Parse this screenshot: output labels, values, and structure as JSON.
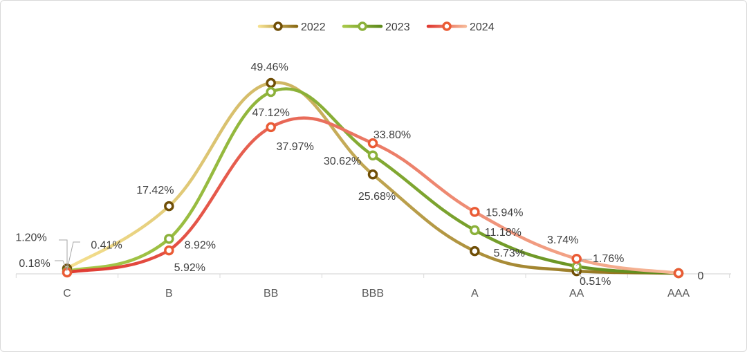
{
  "chart_data": {
    "type": "line",
    "smooth": true,
    "title": "",
    "xlabel": "",
    "ylabel": "",
    "categories": [
      "C",
      "B",
      "BB",
      "BBB",
      "A",
      "AA",
      "AAA"
    ],
    "ylim": [
      0,
      55
    ],
    "legend_position": "top-center",
    "grid": false,
    "series": [
      {
        "name": "2022",
        "values": [
          1.2,
          17.42,
          49.46,
          25.68,
          5.73,
          0.51,
          0
        ],
        "labels": [
          "1.20%",
          "17.42%",
          "49.46%",
          "25.68%",
          "5.73%",
          "0.51%",
          "0"
        ],
        "color_start": "#f5e08f",
        "color_end": "#8a6a14",
        "marker_color": "#6f4e06"
      },
      {
        "name": "2023",
        "values": [
          0.41,
          8.92,
          47.12,
          30.62,
          11.18,
          1.76,
          0
        ],
        "labels": [
          "0.41%",
          "8.92%",
          "47.12%",
          "30.62%",
          "11.18%",
          "1.76%",
          "0"
        ],
        "color_start": "#a8c94a",
        "color_end": "#5e8a1c",
        "marker_color": "#8bb13a"
      },
      {
        "name": "2024",
        "values": [
          0.18,
          5.92,
          37.97,
          33.8,
          15.94,
          3.74,
          0
        ],
        "labels": [
          "0.18%",
          "5.92%",
          "37.97%",
          "33.80%",
          "15.94%",
          "3.74%",
          "0"
        ],
        "color_start": "#e03a32",
        "color_end": "#f6b998",
        "marker_color": "#ea5b35"
      }
    ]
  }
}
